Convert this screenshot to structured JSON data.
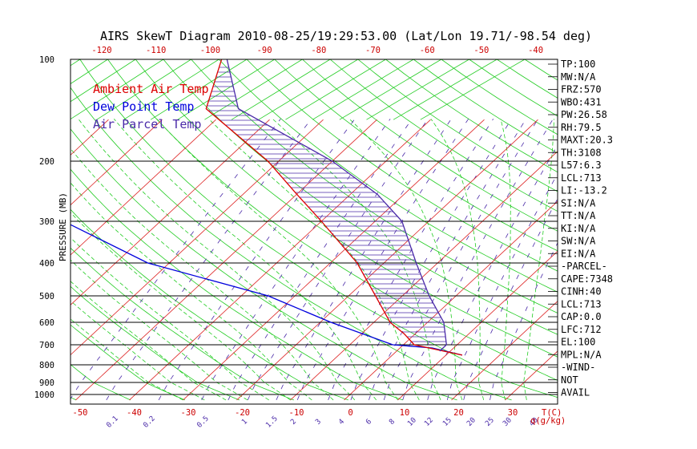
{
  "chart_data": {
    "type": "skewt",
    "title": "AIRS SkewT Diagram 2010-08-25/19:29:53.00 (Lat/Lon 19.71/-98.54 deg)",
    "ylabel": "PRESSURE (MB)",
    "xlabel_unit": "T(C)",
    "mixing_unit": "q(g/kg)",
    "legend": [
      {
        "name": "Ambient Air Temp",
        "color": "#dd0000"
      },
      {
        "name": "Dew Point Temp",
        "color": "#0000dd"
      },
      {
        "name": "Air Parcel Temp",
        "color": "#4a2aa8"
      }
    ],
    "pressure_labels": [
      {
        "p": 100,
        "text": "100"
      },
      {
        "p": 200,
        "text": "200"
      },
      {
        "p": 300,
        "text": "300"
      },
      {
        "p": 400,
        "text": "400"
      },
      {
        "p": 500,
        "text": "500"
      },
      {
        "p": 600,
        "text": "600"
      },
      {
        "p": 700,
        "text": "700"
      },
      {
        "p": 800,
        "text": "800"
      },
      {
        "p": 900,
        "text": "900"
      },
      {
        "p": 1000,
        "text": "1000"
      }
    ],
    "top_temps": [
      -120,
      -110,
      -100,
      -90,
      -80,
      -70,
      -60,
      -50,
      -40
    ],
    "bottom_temps": [
      -50,
      -40,
      -30,
      -20,
      -10,
      0,
      10,
      20,
      30
    ],
    "mixing_labels": [
      "0.1",
      "0.2",
      "0.5",
      "1",
      "1.5",
      "2",
      "3",
      "4",
      "6",
      "8",
      "10",
      "12",
      "15",
      "20",
      "25",
      "30",
      "40"
    ],
    "ambient_temp": [
      {
        "p": 100,
        "t": -81
      },
      {
        "p": 140,
        "t": -74
      },
      {
        "p": 200,
        "t": -52
      },
      {
        "p": 250,
        "t": -40
      },
      {
        "p": 300,
        "t": -30
      },
      {
        "p": 400,
        "t": -15
      },
      {
        "p": 500,
        "t": -5
      },
      {
        "p": 600,
        "t": 3
      },
      {
        "p": 650,
        "t": 8
      },
      {
        "p": 700,
        "t": 12
      },
      {
        "p": 750,
        "t": 23
      }
    ],
    "dew_point": [
      {
        "p": 100,
        "t": -123
      },
      {
        "p": 140,
        "t": -123
      },
      {
        "p": 200,
        "t": -103
      },
      {
        "p": 250,
        "t": -90
      },
      {
        "p": 300,
        "t": -78
      },
      {
        "p": 400,
        "t": -54
      },
      {
        "p": 500,
        "t": -25
      },
      {
        "p": 600,
        "t": -8
      },
      {
        "p": 700,
        "t": 8
      },
      {
        "p": 715,
        "t": 16
      },
      {
        "p": 750,
        "t": 23
      }
    ],
    "parcel_temp": [
      {
        "p": 100,
        "t": -80
      },
      {
        "p": 140,
        "t": -68
      },
      {
        "p": 200,
        "t": -40
      },
      {
        "p": 250,
        "t": -25
      },
      {
        "p": 300,
        "t": -15
      },
      {
        "p": 400,
        "t": -4
      },
      {
        "p": 500,
        "t": 5
      },
      {
        "p": 600,
        "t": 13
      },
      {
        "p": 700,
        "t": 18
      },
      {
        "p": 730,
        "t": 18
      }
    ],
    "indices": [
      "TP:100",
      "MW:N/A",
      "FRZ:570",
      "WBO:431",
      "PW:26.58",
      "RH:79.5",
      "MAXT:20.3",
      "TH:3108",
      "L57:6.3",
      "LCL:713",
      "LI:-13.2",
      "SI:N/A",
      "TT:N/A",
      "KI:N/A",
      "SW:N/A",
      "EI:N/A",
      "-PARCEL-",
      "CAPE:7348",
      "CINH:40",
      "LCL:713",
      "CAP:0.0",
      "LFC:712",
      "EL:100",
      "MPL:N/A",
      "-WIND-",
      "NOT",
      "AVAIL"
    ]
  }
}
